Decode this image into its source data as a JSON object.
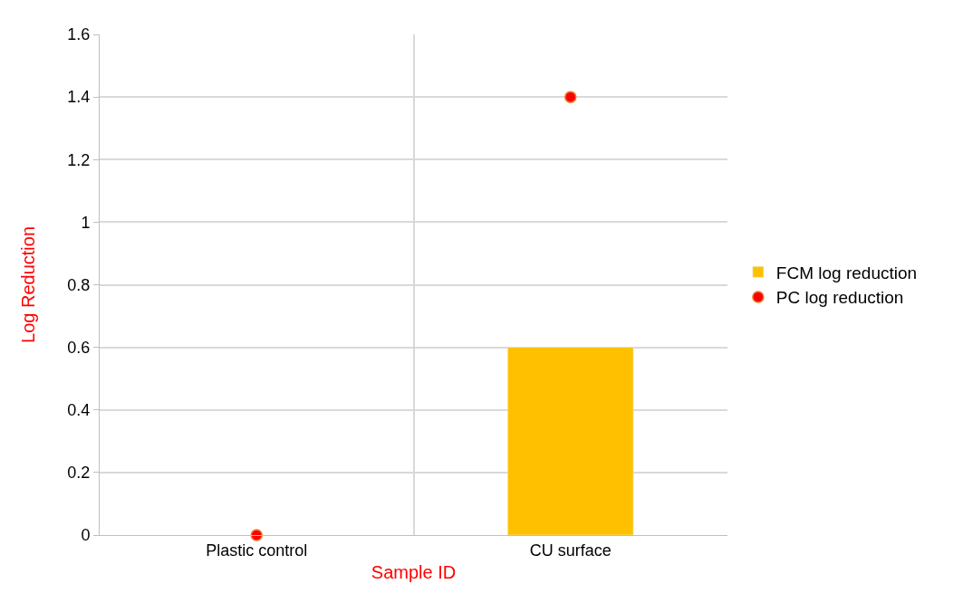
{
  "chart_data": {
    "type": "bar",
    "xlabel": "Sample ID",
    "ylabel": "Log Reduction",
    "categories": [
      "Plastic control",
      "CU surface"
    ],
    "series": [
      {
        "name": "FCM log reduction",
        "color": "#ffc000",
        "values": [
          null,
          0.6
        ]
      },
      {
        "name": "PC log reduction",
        "color": "#ff0000",
        "type": "scatter",
        "marker": "circle",
        "values": [
          0,
          1.4
        ]
      }
    ],
    "ylim": [
      0,
      1.6
    ],
    "yticks": [
      0,
      0.2,
      0.4,
      0.6,
      0.8,
      1,
      1.2,
      1.4,
      1.6
    ],
    "grid": true,
    "legend": "right"
  }
}
